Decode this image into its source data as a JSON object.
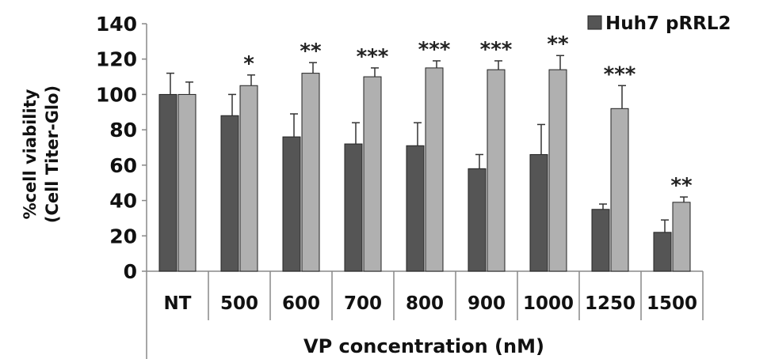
{
  "chart_data": {
    "type": "bar",
    "title": "",
    "xlabel": "VP concentration (nM)",
    "ylabel_line1": "%cell viability",
    "ylabel_line2": "(Cell Titer-Glo)",
    "ylim": [
      0,
      140
    ],
    "yticks": [
      0,
      20,
      40,
      60,
      80,
      100,
      120,
      140
    ],
    "categories": [
      "NT",
      "500",
      "600",
      "700",
      "800",
      "900",
      "1000",
      "1250",
      "1500"
    ],
    "series": [
      {
        "name": "Huh7 pRRL2",
        "color": "#555555",
        "values": [
          100,
          88,
          76,
          72,
          71,
          58,
          66,
          35,
          22
        ],
        "errors": [
          12,
          12,
          13,
          12,
          13,
          8,
          17,
          3,
          7
        ]
      },
      {
        "name": "",
        "color": "#b0b0b0",
        "values": [
          100,
          105,
          112,
          110,
          115,
          114,
          114,
          92,
          39
        ],
        "errors": [
          7,
          6,
          6,
          5,
          4,
          5,
          8,
          13,
          3
        ]
      }
    ],
    "significance": [
      "",
      "*",
      "**",
      "***",
      "***",
      "***",
      "**",
      "***",
      "**"
    ],
    "legend_position": "top-right",
    "grid": false
  }
}
